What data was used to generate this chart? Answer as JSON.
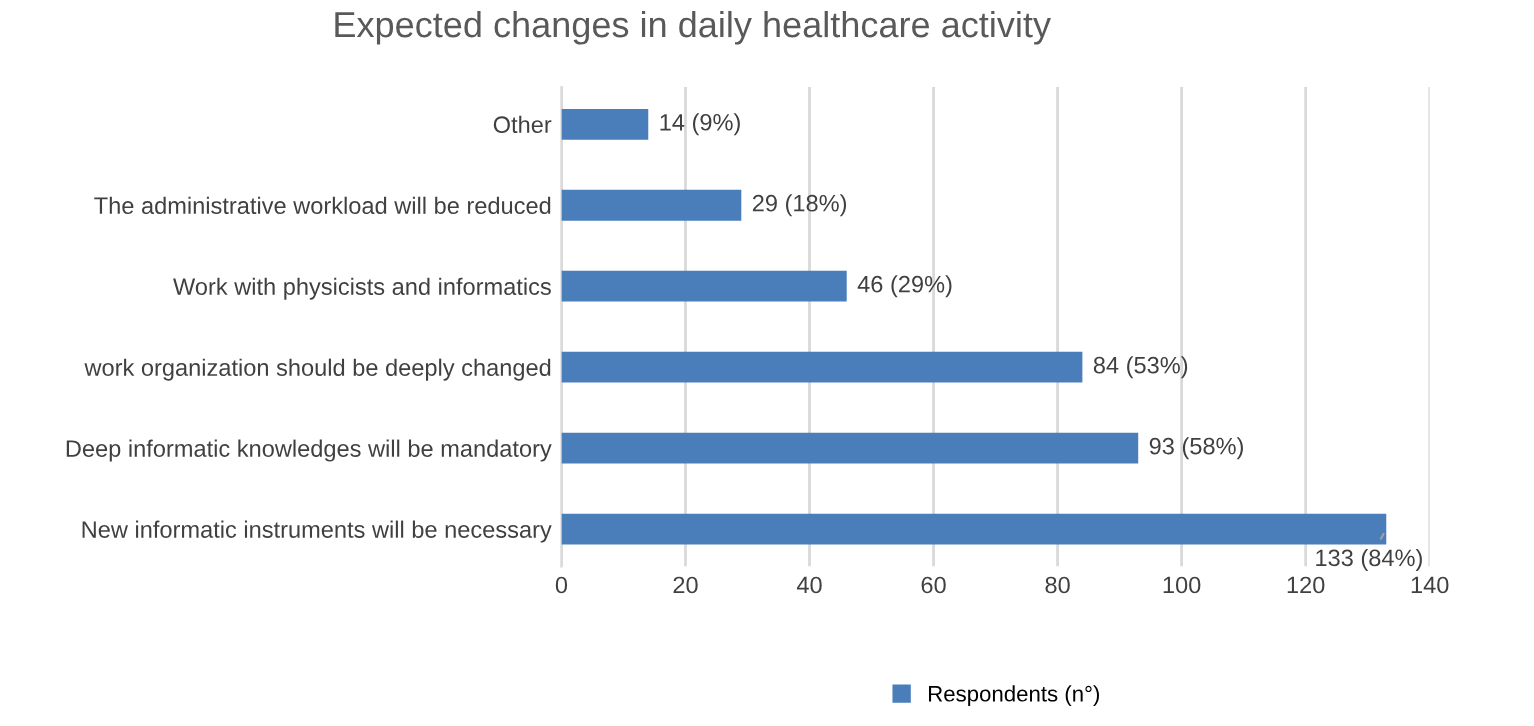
{
  "chart_data": {
    "type": "bar",
    "orientation": "horizontal",
    "title": "Expected changes in daily healthcare activity",
    "categories": [
      "Other",
      "The administrative workload will be reduced",
      "Work with physicists and informatics",
      "work organization should be deeply changed",
      "Deep informatic knowledges will be mandatory",
      "New informatic instruments will be necessary"
    ],
    "series": [
      {
        "name": "Respondents (n°)",
        "color": "#4a7ebb",
        "values": [
          14,
          29,
          46,
          84,
          93,
          133
        ],
        "value_labels": [
          "14 (9%)",
          "29 (18%)",
          "46 (29%)",
          "84 (53%)",
          "93 (58%)",
          "133 (84%)"
        ]
      }
    ],
    "xlim": [
      0,
      140
    ],
    "xticks": [
      0,
      20,
      40,
      60,
      80,
      100,
      120,
      140
    ],
    "grid": "x",
    "legend": "bottom"
  }
}
